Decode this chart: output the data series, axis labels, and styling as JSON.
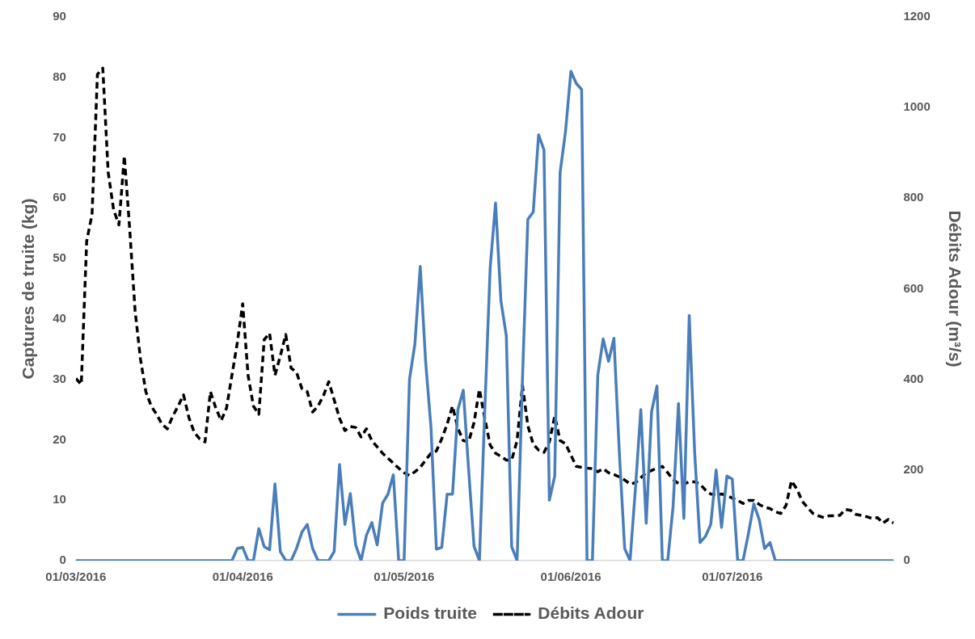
{
  "chart_data": {
    "type": "line",
    "xlabel": null,
    "ylabel": "Captures de truite (kg)",
    "y2label": "Débits Adour (m³/s)",
    "xlim": [
      "2016-03-01",
      "2016-07-31"
    ],
    "xticks": [
      {
        "value": "2016-03-01",
        "label": "01/03/2016"
      },
      {
        "value": "2016-04-01",
        "label": "01/04/2016"
      },
      {
        "value": "2016-05-01",
        "label": "01/05/2016"
      },
      {
        "value": "2016-06-01",
        "label": "01/06/2016"
      },
      {
        "value": "2016-07-01",
        "label": "01/07/2016"
      }
    ],
    "ylim": [
      0,
      90
    ],
    "yticks": [
      0,
      10,
      20,
      30,
      40,
      50,
      60,
      70,
      80,
      90
    ],
    "y2lim": [
      0,
      1200
    ],
    "y2ticks": [
      0,
      200,
      400,
      600,
      800,
      1000,
      1200
    ],
    "legend": "bottom",
    "marker": "none",
    "series": [
      {
        "name": "Poids truite",
        "color": "#4a7ebb",
        "line_style": "solid",
        "x": [
          "2016-03-01",
          "2016-03-30",
          "2016-03-31",
          "2016-04-01",
          "2016-04-02",
          "2016-04-03",
          "2016-04-04",
          "2016-04-05",
          "2016-04-06",
          "2016-04-07",
          "2016-04-08",
          "2016-04-09",
          "2016-04-10",
          "2016-04-11",
          "2016-04-12",
          "2016-04-13",
          "2016-04-14",
          "2016-04-15",
          "2016-04-16",
          "2016-04-17",
          "2016-04-18",
          "2016-04-19",
          "2016-04-20",
          "2016-04-21",
          "2016-04-22",
          "2016-04-23",
          "2016-04-24",
          "2016-04-25",
          "2016-04-26",
          "2016-04-27",
          "2016-04-28",
          "2016-04-29",
          "2016-04-30",
          "2016-05-01",
          "2016-05-02",
          "2016-05-03",
          "2016-05-04",
          "2016-05-05",
          "2016-05-06",
          "2016-05-07",
          "2016-05-08",
          "2016-05-09",
          "2016-05-10",
          "2016-05-11",
          "2016-05-12",
          "2016-05-13",
          "2016-05-14",
          "2016-05-15",
          "2016-05-16",
          "2016-05-17",
          "2016-05-18",
          "2016-05-19",
          "2016-05-20",
          "2016-05-21",
          "2016-05-22",
          "2016-05-23",
          "2016-05-24",
          "2016-05-25",
          "2016-05-26",
          "2016-05-27",
          "2016-05-28",
          "2016-05-29",
          "2016-05-30",
          "2016-05-31",
          "2016-06-01",
          "2016-06-02",
          "2016-06-03",
          "2016-06-04",
          "2016-06-05",
          "2016-06-06",
          "2016-06-07",
          "2016-06-08",
          "2016-06-09",
          "2016-06-10",
          "2016-06-11",
          "2016-06-12",
          "2016-06-13",
          "2016-06-14",
          "2016-06-15",
          "2016-06-16",
          "2016-06-17",
          "2016-06-18",
          "2016-06-19",
          "2016-06-20",
          "2016-06-21",
          "2016-06-22",
          "2016-06-23",
          "2016-06-24",
          "2016-06-25",
          "2016-06-26",
          "2016-06-27",
          "2016-06-28",
          "2016-06-29",
          "2016-06-30",
          "2016-07-01",
          "2016-07-02",
          "2016-07-03",
          "2016-07-04",
          "2016-07-05",
          "2016-07-06",
          "2016-07-07",
          "2016-07-08",
          "2016-07-09",
          "2016-07-31"
        ],
        "values": [
          0,
          0,
          2.0,
          2.2,
          0,
          0,
          5.3,
          2.3,
          1.8,
          12.7,
          1.5,
          0,
          0,
          2.0,
          4.7,
          6,
          2,
          0,
          0,
          0,
          1.5,
          15.9,
          6,
          11.1,
          2.6,
          0,
          4.2,
          6.3,
          2.6,
          9.5,
          11,
          14.2,
          0,
          0,
          30,
          35.8,
          48.7,
          33,
          22,
          1.9,
          2.2,
          11,
          11,
          25,
          28.2,
          15,
          2.4,
          0,
          25,
          48.5,
          59.2,
          43,
          37.2,
          2.3,
          0,
          30,
          56.5,
          57.7,
          70.5,
          68,
          10,
          14,
          64.3,
          71,
          81,
          79,
          78,
          0,
          0,
          30.7,
          36.7,
          33,
          36.8,
          18,
          2,
          0,
          12,
          25,
          6.2,
          24.7,
          28.9,
          0,
          0,
          9,
          26,
          7,
          40.6,
          18,
          3,
          4,
          6,
          15,
          5.5,
          14,
          13.5,
          0,
          0,
          4.5,
          9.4,
          6.8,
          2,
          3,
          0,
          0
        ]
      },
      {
        "name": "Débits Adour",
        "color": "#000000",
        "line_style": "dashed",
        "axis": "y2",
        "x": [
          "2016-03-01",
          "2016-03-02",
          "2016-03-03",
          "2016-03-04",
          "2016-03-05",
          "2016-03-06",
          "2016-03-07",
          "2016-03-08",
          "2016-03-09",
          "2016-03-10",
          "2016-03-11",
          "2016-03-12",
          "2016-03-13",
          "2016-03-14",
          "2016-03-15",
          "2016-03-16",
          "2016-03-17",
          "2016-03-18",
          "2016-03-19",
          "2016-03-20",
          "2016-03-21",
          "2016-03-22",
          "2016-03-23",
          "2016-03-24",
          "2016-03-25",
          "2016-03-26",
          "2016-03-27",
          "2016-03-28",
          "2016-03-29",
          "2016-03-30",
          "2016-03-31",
          "2016-04-01",
          "2016-04-02",
          "2016-04-03",
          "2016-04-04",
          "2016-04-05",
          "2016-04-06",
          "2016-04-07",
          "2016-04-08",
          "2016-04-09",
          "2016-04-10",
          "2016-04-11",
          "2016-04-12",
          "2016-04-13",
          "2016-04-14",
          "2016-04-15",
          "2016-04-16",
          "2016-04-17",
          "2016-04-18",
          "2016-04-19",
          "2016-04-20",
          "2016-04-21",
          "2016-04-22",
          "2016-04-23",
          "2016-04-24",
          "2016-04-25",
          "2016-04-26",
          "2016-04-27",
          "2016-04-28",
          "2016-04-29",
          "2016-04-30",
          "2016-05-01",
          "2016-05-02",
          "2016-05-03",
          "2016-05-04",
          "2016-05-05",
          "2016-05-06",
          "2016-05-07",
          "2016-05-08",
          "2016-05-09",
          "2016-05-10",
          "2016-05-11",
          "2016-05-12",
          "2016-05-13",
          "2016-05-14",
          "2016-05-15",
          "2016-05-16",
          "2016-05-17",
          "2016-05-18",
          "2016-05-19",
          "2016-05-20",
          "2016-05-21",
          "2016-05-22",
          "2016-05-23",
          "2016-05-24",
          "2016-05-25",
          "2016-05-26",
          "2016-05-27",
          "2016-05-28",
          "2016-05-29",
          "2016-05-30",
          "2016-05-31",
          "2016-06-01",
          "2016-06-02",
          "2016-06-03",
          "2016-06-04",
          "2016-06-05",
          "2016-06-06",
          "2016-06-07",
          "2016-06-08",
          "2016-06-09",
          "2016-06-10",
          "2016-06-11",
          "2016-06-12",
          "2016-06-13",
          "2016-06-14",
          "2016-06-15",
          "2016-06-16",
          "2016-06-17",
          "2016-06-18",
          "2016-06-19",
          "2016-06-20",
          "2016-06-21",
          "2016-06-22",
          "2016-06-23",
          "2016-06-24",
          "2016-06-25",
          "2016-06-26",
          "2016-06-27",
          "2016-06-28",
          "2016-06-29",
          "2016-06-30",
          "2016-07-01",
          "2016-07-02",
          "2016-07-03",
          "2016-07-04",
          "2016-07-05",
          "2016-07-06",
          "2016-07-07",
          "2016-07-08",
          "2016-07-09",
          "2016-07-10",
          "2016-07-11",
          "2016-07-12",
          "2016-07-13",
          "2016-07-14",
          "2016-07-15",
          "2016-07-16",
          "2016-07-17",
          "2016-07-18",
          "2016-07-19",
          "2016-07-20",
          "2016-07-21",
          "2016-07-22",
          "2016-07-23",
          "2016-07-24",
          "2016-07-25",
          "2016-07-26",
          "2016-07-27",
          "2016-07-28",
          "2016-07-29",
          "2016-07-30",
          "2016-07-31"
        ],
        "values": [
          402,
          389,
          705,
          764,
          1073,
          1087,
          857,
          775,
          741,
          893,
          732,
          552,
          445,
          373,
          341,
          323,
          301,
          291,
          319,
          341,
          366,
          316,
          283,
          269,
          262,
          373,
          337,
          309,
          337,
          409,
          481,
          567,
          409,
          341,
          323,
          488,
          502,
          409,
          452,
          499,
          425,
          416,
          380,
          373,
          328,
          341,
          364,
          395,
          355,
          314,
          287,
          296,
          294,
          273,
          291,
          265,
          251,
          237,
          226,
          215,
          204,
          194,
          188,
          196,
          206,
          222,
          237,
          242,
          269,
          301,
          341,
          292,
          265,
          262,
          305,
          378,
          314,
          255,
          237,
          230,
          222,
          222,
          265,
          387,
          298,
          257,
          244,
          239,
          262,
          319,
          265,
          258,
          233,
          208,
          206,
          204,
          203,
          196,
          203,
          194,
          190,
          185,
          178,
          169,
          172,
          183,
          194,
          199,
          204,
          208,
          194,
          179,
          170,
          169,
          174,
          174,
          169,
          156,
          147,
          145,
          147,
          144,
          138,
          133,
          126,
          133,
          133,
          124,
          118,
          115,
          108,
          104,
          122,
          176,
          158,
          131,
          117,
          104,
          99,
          95,
          99,
          99,
          100,
          113,
          111,
          102,
          100,
          97,
          93,
          95,
          83,
          91,
          83
        ]
      }
    ]
  }
}
